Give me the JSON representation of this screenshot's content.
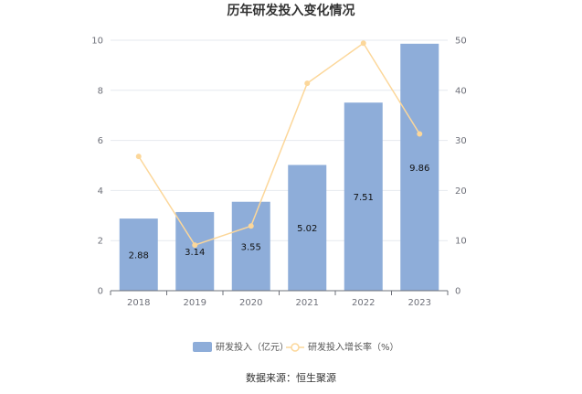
{
  "chart_data": {
    "type": "bar",
    "title": "历年研发投入变化情况",
    "categories": [
      "2018",
      "2019",
      "2020",
      "2021",
      "2022",
      "2023"
    ],
    "series": [
      {
        "name": "研发投入（亿元）",
        "type": "bar",
        "axis": "left",
        "color": "#8eadd9",
        "values": [
          2.88,
          3.14,
          3.55,
          5.02,
          7.51,
          9.86
        ]
      },
      {
        "name": "研发投入增长率（%）",
        "type": "line",
        "axis": "right",
        "color": "#fcd79a",
        "values": [
          26.8,
          9.1,
          12.9,
          41.4,
          49.4,
          31.3
        ]
      }
    ],
    "y_left": {
      "min": 0,
      "max": 10,
      "ticks": [
        0,
        2,
        4,
        6,
        8,
        10
      ]
    },
    "y_right": {
      "min": 0,
      "max": 50,
      "ticks": [
        0,
        10,
        20,
        30,
        40,
        50
      ]
    },
    "grid": true,
    "legend": "bottom",
    "source": "数据来源：恒生聚源"
  }
}
